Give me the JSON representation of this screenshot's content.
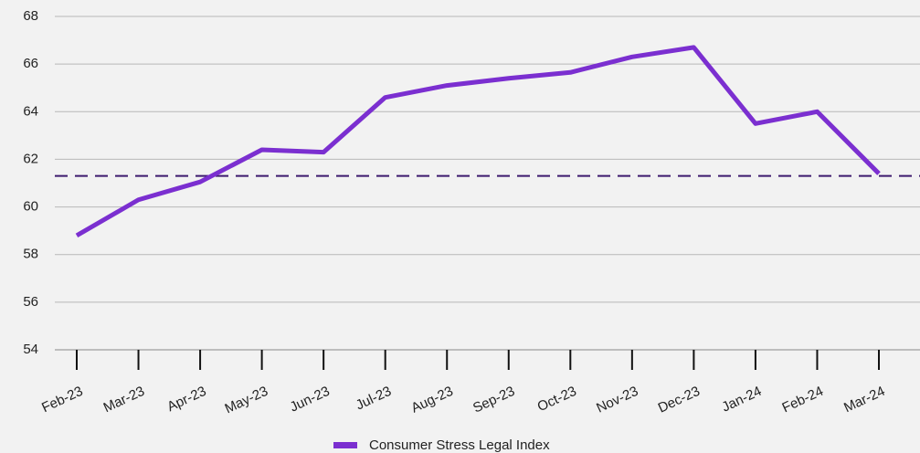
{
  "chart_data": {
    "type": "line",
    "categories": [
      "Feb-23",
      "Mar-23",
      "Apr-23",
      "May-23",
      "Jun-23",
      "Jul-23",
      "Aug-23",
      "Sep-23",
      "Oct-23",
      "Nov-23",
      "Dec-23",
      "Jan-24",
      "Feb-24",
      "Mar-24"
    ],
    "series": [
      {
        "name": "Consumer Stress Legal Index",
        "color": "#7b2fd0",
        "values": [
          58.8,
          60.3,
          61.05,
          62.4,
          62.3,
          64.6,
          65.1,
          65.4,
          65.65,
          66.3,
          66.7,
          63.5,
          64.0,
          61.4
        ]
      }
    ],
    "reference_line": 61.3,
    "reference_color": "#3d1a6e",
    "ylim": [
      54,
      68
    ],
    "yticks": [
      54,
      56,
      58,
      60,
      62,
      64,
      66,
      68
    ],
    "grid": true,
    "legend": "bottom"
  }
}
